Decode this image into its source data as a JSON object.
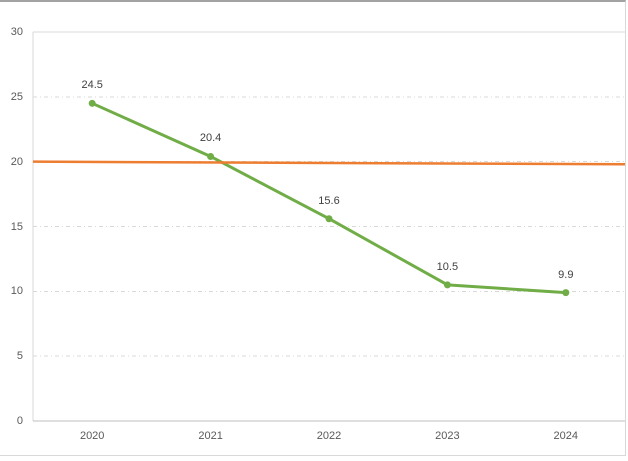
{
  "chart_data": {
    "type": "line",
    "title": "",
    "categories": [
      "2020",
      "2021",
      "2022",
      "2023",
      "2024"
    ],
    "series": [
      {
        "name": "",
        "color": "#70AD47",
        "values": [
          24.5,
          20.4,
          15.6,
          10.5,
          9.9
        ],
        "labels": [
          "24.5",
          "20.4",
          "15.6",
          "10.5",
          "9.9"
        ],
        "markers": true,
        "data_labels_visible": true
      },
      {
        "name": "",
        "color": "#ED7D31",
        "values": [
          20.0,
          19.95,
          19.9,
          19.85,
          19.8
        ],
        "labels": null,
        "markers": false,
        "data_labels_visible": false,
        "full_width": true
      }
    ],
    "y_axis": {
      "min": 0,
      "max": 30,
      "step": 5,
      "ticks": [
        "0",
        "5",
        "10",
        "15",
        "20",
        "25",
        "30"
      ]
    },
    "x_axis": {
      "ticks": [
        "2020",
        "2021",
        "2022",
        "2023",
        "2024"
      ]
    },
    "grid": "horizontal dash-dot",
    "legend_position": "none"
  },
  "colors": {
    "series_green": "#70AD47",
    "series_orange": "#ED7D31",
    "gridline": "#d9d9d9",
    "plot_border": "#d9d9d9",
    "axis_line": "#bfbfbf",
    "tick_text": "#595959",
    "data_label_text": "#404040",
    "frame_top_border": "#a3a3a3",
    "frame_border": "#d9d9d9",
    "background": "#ffffff"
  }
}
